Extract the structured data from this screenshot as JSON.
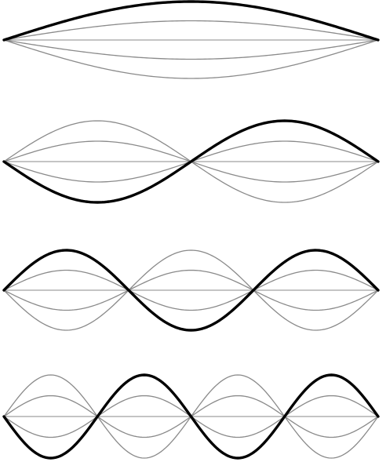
{
  "diagram": {
    "modes": [
      {
        "harmonic": 1,
        "envelope_scales": [
          1.0,
          0.5,
          -0.5,
          -1.0
        ],
        "highlight_scale": 1.0,
        "highlight_phase": 1
      },
      {
        "harmonic": 2,
        "envelope_scales": [
          1.0,
          0.5,
          -0.5,
          -1.0
        ],
        "highlight_scale": 1.0,
        "highlight_phase": -1
      },
      {
        "harmonic": 3,
        "envelope_scales": [
          1.0,
          0.5,
          -0.5,
          -1.0
        ],
        "highlight_scale": 1.0,
        "highlight_phase": 1
      },
      {
        "harmonic": 4,
        "envelope_scales": [
          1.0,
          0.5,
          -0.5,
          -1.0
        ],
        "highlight_scale": 1.0,
        "highlight_phase": -1
      }
    ],
    "colors": {
      "envelope": "#8a8a8a",
      "highlight": "#000000",
      "background": "#ffffff"
    }
  }
}
